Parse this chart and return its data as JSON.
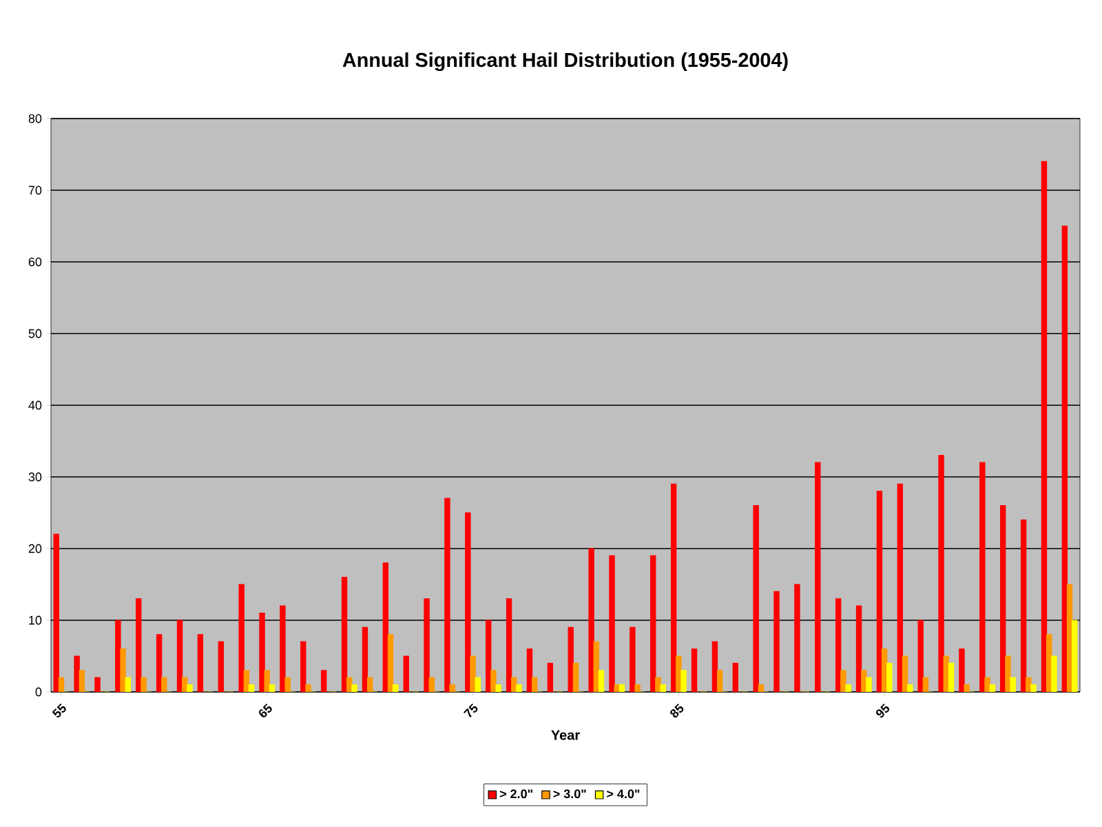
{
  "chart_data": {
    "type": "bar",
    "title": "Annual Significant Hail Distribution (1955-2004)",
    "xlabel": "Year",
    "categories": [
      "55",
      null,
      null,
      null,
      null,
      null,
      null,
      null,
      null,
      null,
      "65",
      null,
      null,
      null,
      null,
      null,
      null,
      null,
      null,
      null,
      "75",
      null,
      null,
      null,
      null,
      null,
      null,
      null,
      null,
      null,
      "85",
      null,
      null,
      null,
      null,
      null,
      null,
      null,
      null,
      null,
      "95",
      null,
      null,
      null,
      null,
      null,
      null,
      null,
      null,
      null
    ],
    "series": [
      {
        "name": "> 2.0\"",
        "color": "#ff0000",
        "values": [
          22,
          5,
          2,
          10,
          13,
          8,
          10,
          8,
          7,
          15,
          11,
          12,
          7,
          3,
          16,
          9,
          18,
          5,
          13,
          27,
          25,
          10,
          13,
          6,
          4,
          9,
          20,
          19,
          9,
          19,
          29,
          6,
          7,
          4,
          26,
          14,
          15,
          32,
          13,
          12,
          28,
          29,
          10,
          33,
          6,
          32,
          26,
          24,
          74,
          65
        ]
      },
      {
        "name": "> 3.0\"",
        "color": "#ff9900",
        "values": [
          2,
          3,
          0,
          6,
          2,
          2,
          2,
          0,
          0,
          3,
          3,
          2,
          1,
          0,
          2,
          2,
          8,
          0,
          2,
          1,
          5,
          3,
          2,
          2,
          0,
          4,
          7,
          1,
          1,
          2,
          5,
          0,
          3,
          0,
          1,
          0,
          0,
          0,
          3,
          3,
          6,
          5,
          2,
          5,
          1,
          2,
          5,
          2,
          8,
          15
        ]
      },
      {
        "name": "> 4.0\"",
        "color": "#ffff00",
        "values": [
          0,
          0,
          0,
          2,
          0,
          0,
          1,
          0,
          0,
          1,
          1,
          0,
          0,
          0,
          1,
          0,
          1,
          0,
          0,
          0,
          2,
          1,
          1,
          0,
          0,
          0,
          3,
          1,
          0,
          1,
          3,
          0,
          0,
          0,
          0,
          0,
          0,
          0,
          1,
          2,
          4,
          1,
          0,
          4,
          0,
          1,
          2,
          1,
          5,
          10
        ]
      }
    ],
    "ylim": [
      0,
      80
    ],
    "yticks": [
      0,
      10,
      20,
      30,
      40,
      50,
      60,
      70,
      80
    ],
    "grid": "y",
    "legend": "bottom"
  }
}
